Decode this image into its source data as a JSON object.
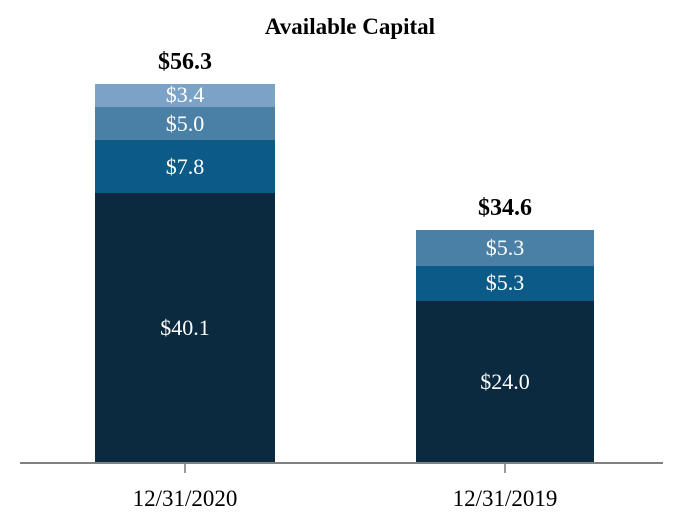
{
  "chart_data": {
    "type": "bar",
    "stacked": true,
    "title": "Available Capital",
    "units": "USD billions (values shown with $ prefix)",
    "categories": [
      "12/31/2020",
      "12/31/2019"
    ],
    "y_axis_visible": false,
    "grid": false,
    "legend": "none",
    "axis_color": "#808080",
    "tick_color": "#9a9a9a",
    "total_label_color": "#000000",
    "segment_label_color": "#ffffff",
    "bars": [
      {
        "category": "12/31/2020",
        "total": 56.3,
        "total_label": "$56.3",
        "segments": [
          {
            "label": "$3.4",
            "value": 3.4,
            "color": "#7aa3c7"
          },
          {
            "label": "$5.0",
            "value": 5.0,
            "color": "#4a80a6"
          },
          {
            "label": "$7.8",
            "value": 7.8,
            "color": "#0c5a88"
          },
          {
            "label": "$40.1",
            "value": 40.1,
            "color": "#0b2a40"
          }
        ]
      },
      {
        "category": "12/31/2019",
        "total": 34.6,
        "total_label": "$34.6",
        "segments": [
          {
            "label": "$5.3",
            "value": 5.3,
            "color": "#4a80a6"
          },
          {
            "label": "$5.3",
            "value": 5.3,
            "color": "#0c5a88"
          },
          {
            "label": "$24.0",
            "value": 24.0,
            "color": "#0b2a40"
          }
        ]
      }
    ]
  }
}
